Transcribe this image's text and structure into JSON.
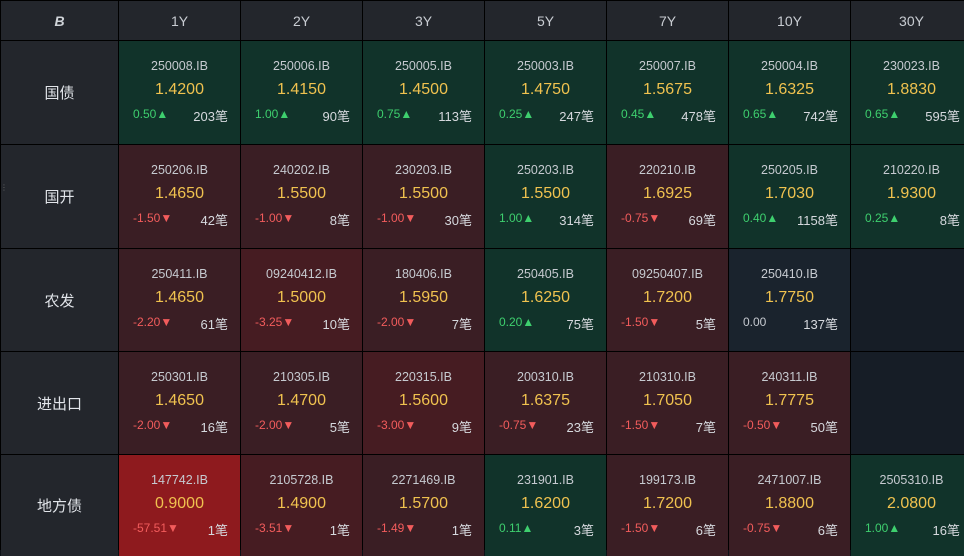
{
  "corner_icon": "brand-logo-icon",
  "corner_glyph": "B",
  "columns": [
    "1Y",
    "2Y",
    "3Y",
    "5Y",
    "7Y",
    "10Y",
    "30Y"
  ],
  "rows": [
    {
      "label": "国债",
      "cells": [
        {
          "code": "250008.IB",
          "rate": "1.4200",
          "chg": "0.50",
          "dir": "up",
          "cnt": "203笔",
          "tone": "g"
        },
        {
          "code": "250006.IB",
          "rate": "1.4150",
          "chg": "1.00",
          "dir": "up",
          "cnt": "90笔",
          "tone": "g"
        },
        {
          "code": "250005.IB",
          "rate": "1.4500",
          "chg": "0.75",
          "dir": "up",
          "cnt": "113笔",
          "tone": "g"
        },
        {
          "code": "250003.IB",
          "rate": "1.4750",
          "chg": "0.25",
          "dir": "up",
          "cnt": "247笔",
          "tone": "g"
        },
        {
          "code": "250007.IB",
          "rate": "1.5675",
          "chg": "0.45",
          "dir": "up",
          "cnt": "478笔",
          "tone": "g"
        },
        {
          "code": "250004.IB",
          "rate": "1.6325",
          "chg": "0.65",
          "dir": "up",
          "cnt": "742笔",
          "tone": "g"
        },
        {
          "code": "230023.IB",
          "rate": "1.8830",
          "chg": "0.65",
          "dir": "up",
          "cnt": "595笔",
          "tone": "g"
        }
      ]
    },
    {
      "label": "国开",
      "cells": [
        {
          "code": "250206.IB",
          "rate": "1.4650",
          "chg": "-1.50",
          "dir": "down",
          "cnt": "42笔",
          "tone": "r"
        },
        {
          "code": "240202.IB",
          "rate": "1.5500",
          "chg": "-1.00",
          "dir": "down",
          "cnt": "8笔",
          "tone": "r"
        },
        {
          "code": "230203.IB",
          "rate": "1.5500",
          "chg": "-1.00",
          "dir": "down",
          "cnt": "30笔",
          "tone": "r"
        },
        {
          "code": "250203.IB",
          "rate": "1.5500",
          "chg": "1.00",
          "dir": "up",
          "cnt": "314笔",
          "tone": "g"
        },
        {
          "code": "220210.IB",
          "rate": "1.6925",
          "chg": "-0.75",
          "dir": "down",
          "cnt": "69笔",
          "tone": "r"
        },
        {
          "code": "250205.IB",
          "rate": "1.7030",
          "chg": "0.40",
          "dir": "up",
          "cnt": "1158笔",
          "tone": "g"
        },
        {
          "code": "210220.IB",
          "rate": "1.9300",
          "chg": "0.25",
          "dir": "up",
          "cnt": "8笔",
          "tone": "g"
        }
      ]
    },
    {
      "label": "农发",
      "cells": [
        {
          "code": "250411.IB",
          "rate": "1.4650",
          "chg": "-2.20",
          "dir": "down",
          "cnt": "61笔",
          "tone": "r"
        },
        {
          "code": "09240412.IB",
          "rate": "1.5000",
          "chg": "-3.25",
          "dir": "down",
          "cnt": "10笔",
          "tone": "r2"
        },
        {
          "code": "180406.IB",
          "rate": "1.5950",
          "chg": "-2.00",
          "dir": "down",
          "cnt": "7笔",
          "tone": "r"
        },
        {
          "code": "250405.IB",
          "rate": "1.6250",
          "chg": "0.20",
          "dir": "up",
          "cnt": "75笔",
          "tone": "g"
        },
        {
          "code": "09250407.IB",
          "rate": "1.7200",
          "chg": "-1.50",
          "dir": "down",
          "cnt": "5笔",
          "tone": "r"
        },
        {
          "code": "250410.IB",
          "rate": "1.7750",
          "chg": "0.00",
          "dir": "flat",
          "cnt": "137笔",
          "tone": "n"
        },
        null
      ]
    },
    {
      "label": "进出口",
      "cells": [
        {
          "code": "250301.IB",
          "rate": "1.4650",
          "chg": "-2.00",
          "dir": "down",
          "cnt": "16笔",
          "tone": "r"
        },
        {
          "code": "210305.IB",
          "rate": "1.4700",
          "chg": "-2.00",
          "dir": "down",
          "cnt": "5笔",
          "tone": "r"
        },
        {
          "code": "220315.IB",
          "rate": "1.5600",
          "chg": "-3.00",
          "dir": "down",
          "cnt": "9笔",
          "tone": "r2"
        },
        {
          "code": "200310.IB",
          "rate": "1.6375",
          "chg": "-0.75",
          "dir": "down",
          "cnt": "23笔",
          "tone": "r"
        },
        {
          "code": "210310.IB",
          "rate": "1.7050",
          "chg": "-1.50",
          "dir": "down",
          "cnt": "7笔",
          "tone": "r"
        },
        {
          "code": "240311.IB",
          "rate": "1.7775",
          "chg": "-0.50",
          "dir": "down",
          "cnt": "50笔",
          "tone": "r"
        },
        null
      ]
    },
    {
      "label": "地方债",
      "cells": [
        {
          "code": "147742.IB",
          "rate": "0.9000",
          "chg": "-57.51",
          "dir": "down",
          "cnt": "1笔",
          "tone": "rr"
        },
        {
          "code": "2105728.IB",
          "rate": "1.4900",
          "chg": "-3.51",
          "dir": "down",
          "cnt": "1笔",
          "tone": "r2"
        },
        {
          "code": "2271469.IB",
          "rate": "1.5700",
          "chg": "-1.49",
          "dir": "down",
          "cnt": "1笔",
          "tone": "r"
        },
        {
          "code": "231901.IB",
          "rate": "1.6200",
          "chg": "0.11",
          "dir": "up",
          "cnt": "3笔",
          "tone": "g"
        },
        {
          "code": "199173.IB",
          "rate": "1.7200",
          "chg": "-1.50",
          "dir": "down",
          "cnt": "6笔",
          "tone": "r"
        },
        {
          "code": "2471007.IB",
          "rate": "1.8800",
          "chg": "-0.75",
          "dir": "down",
          "cnt": "6笔",
          "tone": "r"
        },
        {
          "code": "2505310.IB",
          "rate": "2.0800",
          "chg": "1.00",
          "dir": "up",
          "cnt": "16笔",
          "tone": "g"
        }
      ]
    }
  ]
}
